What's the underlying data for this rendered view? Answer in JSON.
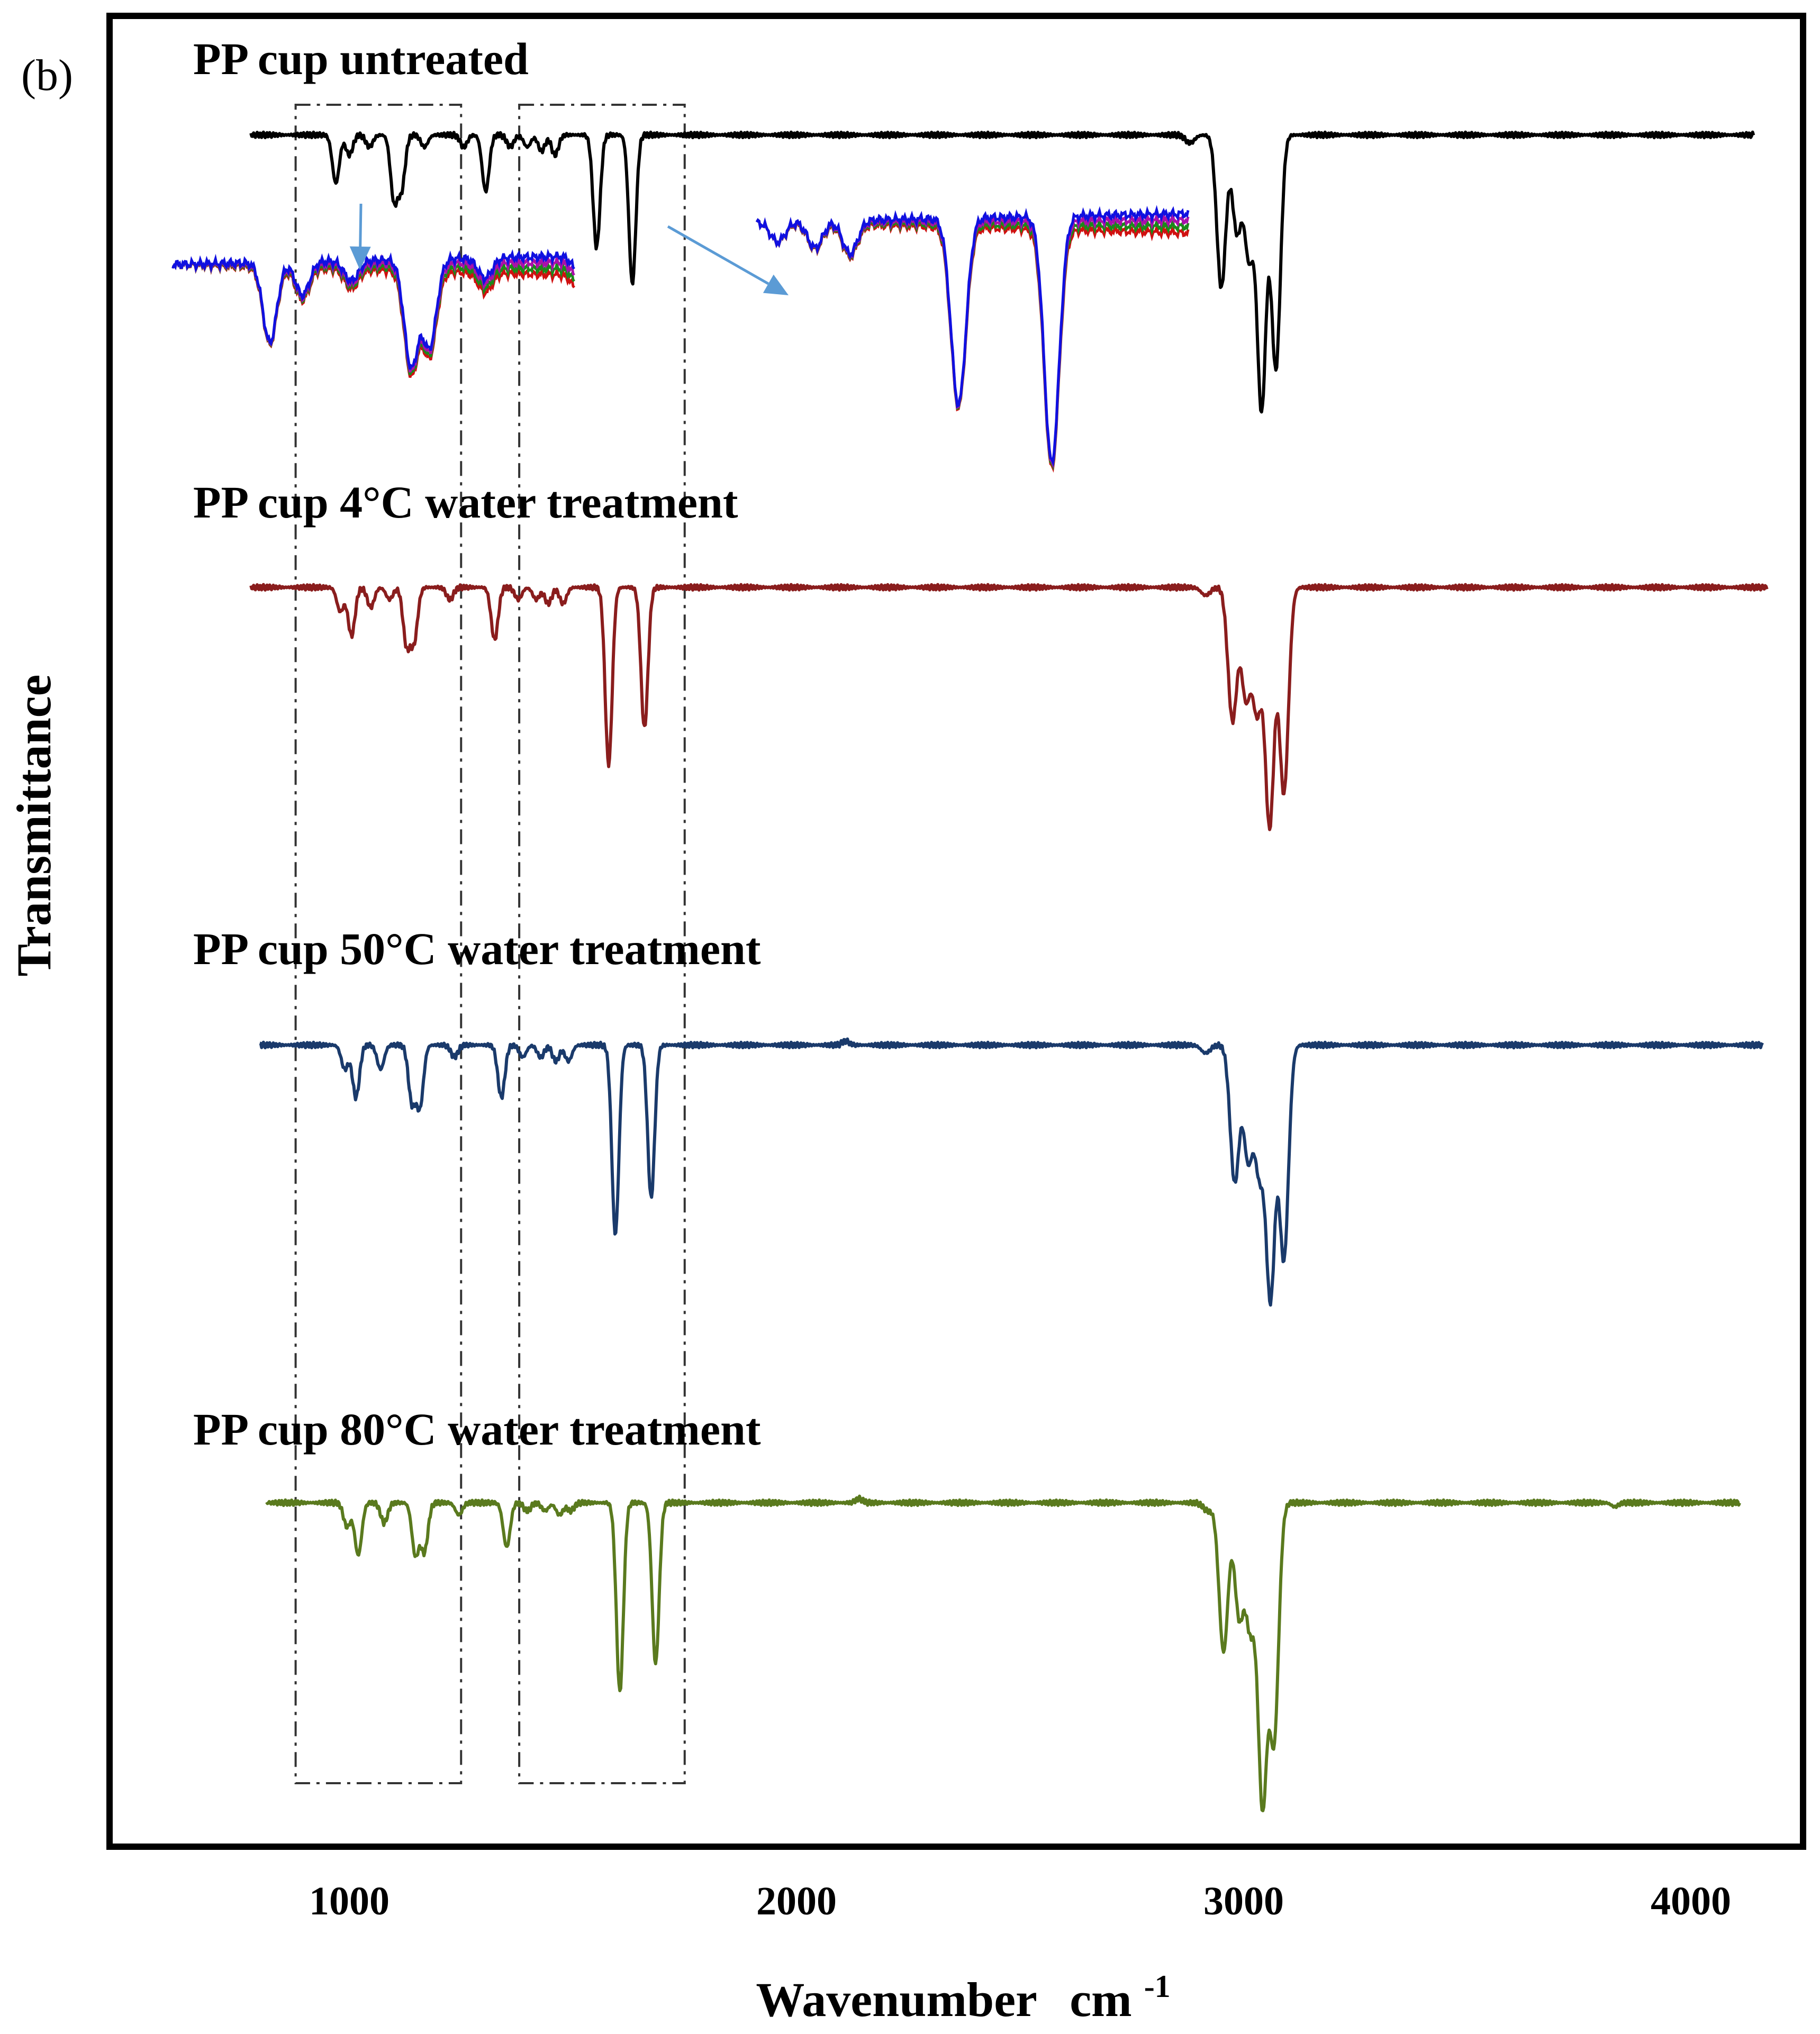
{
  "chart_data": {
    "type": "line",
    "panel_label": "(b)",
    "title": "",
    "xlabel": "Wavenumber",
    "xlabel_unit": "cm",
    "xlabel_exponent": "-1",
    "ylabel": "Transmittance",
    "xlim": [
      500,
      4250
    ],
    "xticks": [
      1000,
      2000,
      3000,
      4000
    ],
    "xtick_labels": [
      "1000",
      "2000",
      "3000",
      "4000"
    ],
    "grid": false,
    "series": [
      {
        "name": "PP cup untreated",
        "color": "#000000",
        "x_start": 780,
        "x_end": 4140,
        "offset": 0.0,
        "peaks": [
          {
            "x": 970,
            "depth": 0.12
          },
          {
            "x": 1000,
            "depth": 0.05
          },
          {
            "x": 1045,
            "depth": 0.03
          },
          {
            "x": 1100,
            "depth": 0.16
          },
          {
            "x": 1117,
            "depth": 0.13
          },
          {
            "x": 1168,
            "depth": 0.03
          },
          {
            "x": 1256,
            "depth": 0.03
          },
          {
            "x": 1305,
            "depth": 0.14
          },
          {
            "x": 1360,
            "depth": 0.03
          },
          {
            "x": 1398,
            "depth": 0.03
          },
          {
            "x": 1430,
            "depth": 0.04
          },
          {
            "x": 1460,
            "depth": 0.05
          },
          {
            "x": 1553,
            "depth": 0.28
          },
          {
            "x": 1633,
            "depth": 0.37
          },
          {
            "x": 2880,
            "depth": 0.02
          },
          {
            "x": 2950,
            "depth": 0.38
          },
          {
            "x": 2985,
            "depth": 0.24
          },
          {
            "x": 3012,
            "depth": 0.3
          },
          {
            "x": 3040,
            "depth": 0.68
          },
          {
            "x": 3072,
            "depth": 0.58
          }
        ]
      },
      {
        "name": "PP cup 4°C water treatment",
        "color": "#8a1d1d",
        "x_start": 780,
        "x_end": 4170,
        "offset": 1.0,
        "peaks": [
          {
            "x": 980,
            "depth": 0.06
          },
          {
            "x": 1005,
            "depth": 0.12
          },
          {
            "x": 1048,
            "depth": 0.05
          },
          {
            "x": 1090,
            "depth": 0.03
          },
          {
            "x": 1128,
            "depth": 0.14
          },
          {
            "x": 1145,
            "depth": 0.13
          },
          {
            "x": 1225,
            "depth": 0.03
          },
          {
            "x": 1325,
            "depth": 0.13
          },
          {
            "x": 1378,
            "depth": 0.03
          },
          {
            "x": 1418,
            "depth": 0.03
          },
          {
            "x": 1445,
            "depth": 0.04
          },
          {
            "x": 1478,
            "depth": 0.04
          },
          {
            "x": 1580,
            "depth": 0.44
          },
          {
            "x": 1660,
            "depth": 0.35
          },
          {
            "x": 2915,
            "depth": 0.02
          },
          {
            "x": 2975,
            "depth": 0.33
          },
          {
            "x": 3005,
            "depth": 0.27
          },
          {
            "x": 3030,
            "depth": 0.3
          },
          {
            "x": 3058,
            "depth": 0.59
          },
          {
            "x": 3090,
            "depth": 0.51
          }
        ]
      },
      {
        "name": "PP cup 50°C water treatment",
        "color": "#1a3a6b",
        "x_start": 800,
        "x_end": 4160,
        "offset": 2.0,
        "peaks": [
          {
            "x": 990,
            "depth": 0.06
          },
          {
            "x": 1015,
            "depth": 0.13
          },
          {
            "x": 1070,
            "depth": 0.06
          },
          {
            "x": 1140,
            "depth": 0.14
          },
          {
            "x": 1158,
            "depth": 0.15
          },
          {
            "x": 1235,
            "depth": 0.03
          },
          {
            "x": 1340,
            "depth": 0.13
          },
          {
            "x": 1388,
            "depth": 0.03
          },
          {
            "x": 1428,
            "depth": 0.03
          },
          {
            "x": 1462,
            "depth": 0.04
          },
          {
            "x": 1490,
            "depth": 0.04
          },
          {
            "x": 1595,
            "depth": 0.47
          },
          {
            "x": 1675,
            "depth": 0.38
          },
          {
            "x": 2110,
            "depth": -0.01
          },
          {
            "x": 2915,
            "depth": 0.02
          },
          {
            "x": 2980,
            "depth": 0.34
          },
          {
            "x": 3010,
            "depth": 0.28
          },
          {
            "x": 3035,
            "depth": 0.3
          },
          {
            "x": 3060,
            "depth": 0.62
          },
          {
            "x": 3090,
            "depth": 0.53
          }
        ]
      },
      {
        "name": "PP cup 80°C water treatment",
        "color": "#5a7a1e",
        "x_start": 815,
        "x_end": 4110,
        "offset": 3.0,
        "peaks": [
          {
            "x": 995,
            "depth": 0.06
          },
          {
            "x": 1020,
            "depth": 0.13
          },
          {
            "x": 1078,
            "depth": 0.05
          },
          {
            "x": 1148,
            "depth": 0.13
          },
          {
            "x": 1168,
            "depth": 0.12
          },
          {
            "x": 1245,
            "depth": 0.03
          },
          {
            "x": 1352,
            "depth": 0.11
          },
          {
            "x": 1398,
            "depth": 0.02
          },
          {
            "x": 1438,
            "depth": 0.02
          },
          {
            "x": 1470,
            "depth": 0.03
          },
          {
            "x": 1495,
            "depth": 0.02
          },
          {
            "x": 1605,
            "depth": 0.47
          },
          {
            "x": 1685,
            "depth": 0.4
          },
          {
            "x": 2140,
            "depth": -0.01
          },
          {
            "x": 2920,
            "depth": 0.02
          },
          {
            "x": 2955,
            "depth": 0.37
          },
          {
            "x": 2990,
            "depth": 0.28
          },
          {
            "x": 3015,
            "depth": 0.3
          },
          {
            "x": 3042,
            "depth": 0.74
          },
          {
            "x": 3068,
            "depth": 0.58
          },
          {
            "x": 3830,
            "depth": 0.01
          }
        ]
      }
    ],
    "highlight_regions": [
      {
        "name": "region-1",
        "x_range": [
          880,
          1250
        ]
      },
      {
        "name": "region-2",
        "x_range": [
          1380,
          1750
        ]
      }
    ],
    "insets": [
      {
        "name": "inset-left",
        "source_region": "region-1",
        "series_colors": [
          "#d01010",
          "#1a8a1a",
          "#aa10aa",
          "#1010e0"
        ]
      },
      {
        "name": "inset-right",
        "source_region": "region-2",
        "series_colors": [
          "#d01010",
          "#1a8a1a",
          "#aa10aa",
          "#1010e0"
        ]
      }
    ],
    "arrow_color": "#5b9bd5"
  }
}
